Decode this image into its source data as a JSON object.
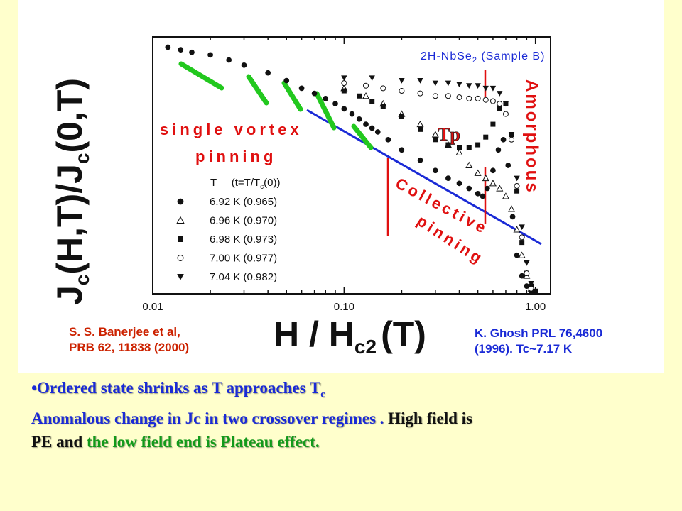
{
  "references": {
    "left_line1": "S. S. Banerjee et al,",
    "left_line2": "PRB 62, 11838 (2000)",
    "right_line1": "K. Ghosh PRL 76,4600",
    "right_line2": "(1996). Tc~7.17 K"
  },
  "bullet": {
    "marker": "•",
    "text": "Ordered state shrinks as T approaches T",
    "sub": "c"
  },
  "para": {
    "part1": "Anomalous change in Jc in two crossover regimes . ",
    "part2": "High field is",
    "part3": "PE",
    "part4": " and ",
    "part5": "the low field end is Plateau effect."
  },
  "chart_data": {
    "type": "scatter",
    "title": "",
    "sample_label": "2H-NbSe",
    "sample_sub": "2",
    "sample_suffix": " (Sample B)",
    "xlabel": "H / H",
    "xlabel_sub": "c2",
    "xlabel_suffix": "(T)",
    "ylabel_main": "J",
    "ylabel_sub": "c",
    "ylabel_mid": "(H,T)/J",
    "ylabel_sub2": "c",
    "ylabel_end": "(0,T)",
    "x_scale": "log",
    "xlim": [
      0.01,
      1.2
    ],
    "ylim": [
      0,
      1
    ],
    "x_ticks": [
      {
        "value": 0.01,
        "label": "0.01"
      },
      {
        "value": 0.1,
        "label": "0.10"
      },
      {
        "value": 1.0,
        "label": "1.00"
      }
    ],
    "legend_header": "T     (t=T/T",
    "legend_header_sub": "c",
    "legend_header_end": "(0))",
    "series": [
      {
        "name": "6.92 K (0.965)",
        "marker": "filled-circle",
        "x": [
          0.012,
          0.014,
          0.016,
          0.02,
          0.025,
          0.03,
          0.04,
          0.05,
          0.06,
          0.07,
          0.08,
          0.09,
          0.1,
          0.11,
          0.12,
          0.13,
          0.14,
          0.15,
          0.17,
          0.2,
          0.25,
          0.3,
          0.35,
          0.4,
          0.45,
          0.5,
          0.53,
          0.56,
          0.6,
          0.64,
          0.68,
          0.72,
          0.76,
          0.8,
          0.85,
          0.9,
          0.95
        ],
        "y": [
          0.96,
          0.95,
          0.94,
          0.93,
          0.91,
          0.89,
          0.86,
          0.83,
          0.8,
          0.78,
          0.76,
          0.74,
          0.72,
          0.7,
          0.68,
          0.66,
          0.645,
          0.63,
          0.6,
          0.56,
          0.52,
          0.48,
          0.45,
          0.43,
          0.41,
          0.39,
          0.38,
          0.41,
          0.48,
          0.56,
          0.6,
          0.5,
          0.3,
          0.15,
          0.07,
          0.03,
          0.01
        ]
      },
      {
        "name": "6.96 K (0.970)",
        "marker": "open-triangle",
        "x": [
          0.1,
          0.13,
          0.16,
          0.2,
          0.25,
          0.3,
          0.35,
          0.4,
          0.45,
          0.5,
          0.55,
          0.6,
          0.65,
          0.7,
          0.75,
          0.8,
          0.85,
          0.9,
          0.95
        ],
        "y": [
          0.8,
          0.77,
          0.74,
          0.7,
          0.66,
          0.62,
          0.58,
          0.55,
          0.5,
          0.47,
          0.45,
          0.43,
          0.41,
          0.38,
          0.33,
          0.25,
          0.15,
          0.07,
          0.02
        ]
      },
      {
        "name": "6.98 K (0.973)",
        "marker": "filled-square",
        "x": [
          0.1,
          0.12,
          0.14,
          0.16,
          0.2,
          0.25,
          0.3,
          0.35,
          0.4,
          0.45,
          0.5,
          0.55,
          0.6,
          0.65,
          0.7,
          0.75,
          0.8,
          0.85,
          0.9,
          0.95,
          1.0
        ],
        "y": [
          0.79,
          0.77,
          0.75,
          0.73,
          0.69,
          0.64,
          0.6,
          0.58,
          0.57,
          0.57,
          0.58,
          0.61,
          0.66,
          0.72,
          0.74,
          0.62,
          0.4,
          0.2,
          0.08,
          0.03,
          0.01
        ]
      },
      {
        "name": "7.00 K (0.977)",
        "marker": "open-circle",
        "x": [
          0.1,
          0.13,
          0.16,
          0.2,
          0.25,
          0.3,
          0.35,
          0.4,
          0.45,
          0.5,
          0.55,
          0.6,
          0.65,
          0.7,
          0.75,
          0.8,
          0.85,
          0.9,
          0.95
        ],
        "y": [
          0.82,
          0.81,
          0.8,
          0.79,
          0.78,
          0.77,
          0.77,
          0.765,
          0.76,
          0.76,
          0.755,
          0.75,
          0.74,
          0.7,
          0.6,
          0.42,
          0.22,
          0.08,
          0.02
        ]
      },
      {
        "name": "7.04 K (0.982)",
        "marker": "filled-triangle-down",
        "x": [
          0.1,
          0.14,
          0.2,
          0.25,
          0.3,
          0.35,
          0.4,
          0.45,
          0.5,
          0.55,
          0.6,
          0.65,
          0.7,
          0.75,
          0.8,
          0.85,
          0.9,
          0.95,
          1.0
        ],
        "y": [
          0.84,
          0.84,
          0.83,
          0.83,
          0.82,
          0.82,
          0.815,
          0.81,
          0.81,
          0.8,
          0.8,
          0.78,
          0.74,
          0.62,
          0.45,
          0.26,
          0.12,
          0.04,
          0.01
        ]
      }
    ],
    "annotations": {
      "single": "single vortex",
      "pinning": "pinning",
      "collective": "Collective",
      "pinning2": "pinning",
      "amorphous": "Amorphous",
      "tp": "Tp"
    },
    "colors": {
      "red": "#e01010",
      "blue": "#1a2ad6",
      "green": "#22c81e"
    }
  }
}
